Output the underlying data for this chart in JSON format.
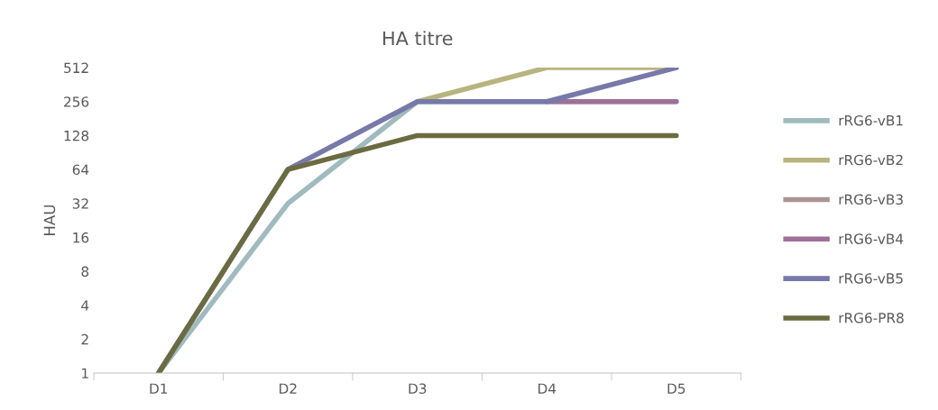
{
  "chart_data": {
    "type": "line",
    "title": "HA titre",
    "ylabel": "HAU",
    "categories": [
      "D1",
      "D2",
      "D3",
      "D4",
      "D5"
    ],
    "series": [
      {
        "name": "rRG6-vB1",
        "color": "#a0bbbf",
        "values": [
          1,
          32,
          256,
          256,
          256
        ]
      },
      {
        "name": "rRG6-vB2",
        "color": "#b8b47f",
        "values": [
          null,
          null,
          256,
          512,
          512
        ]
      },
      {
        "name": "rRG6-vB3",
        "color": "#ad9493",
        "values": [
          null,
          null,
          null,
          null,
          null
        ]
      },
      {
        "name": "rRG6-vB4",
        "color": "#9e7098",
        "values": [
          null,
          null,
          null,
          256,
          256
        ]
      },
      {
        "name": "rRG6-vB5",
        "color": "#7779a9",
        "values": [
          1,
          64,
          256,
          256,
          512
        ]
      },
      {
        "name": "rRG6-PR8",
        "color": "#6b6b41",
        "values": [
          1,
          64,
          128,
          128,
          128
        ]
      }
    ],
    "log": "y",
    "ylim": [
      1,
      512
    ],
    "yticks": [
      1,
      2,
      4,
      8,
      16,
      32,
      64,
      128,
      256,
      512
    ],
    "grid": false,
    "legend": "right",
    "marker": "none",
    "line_style": "solid"
  }
}
